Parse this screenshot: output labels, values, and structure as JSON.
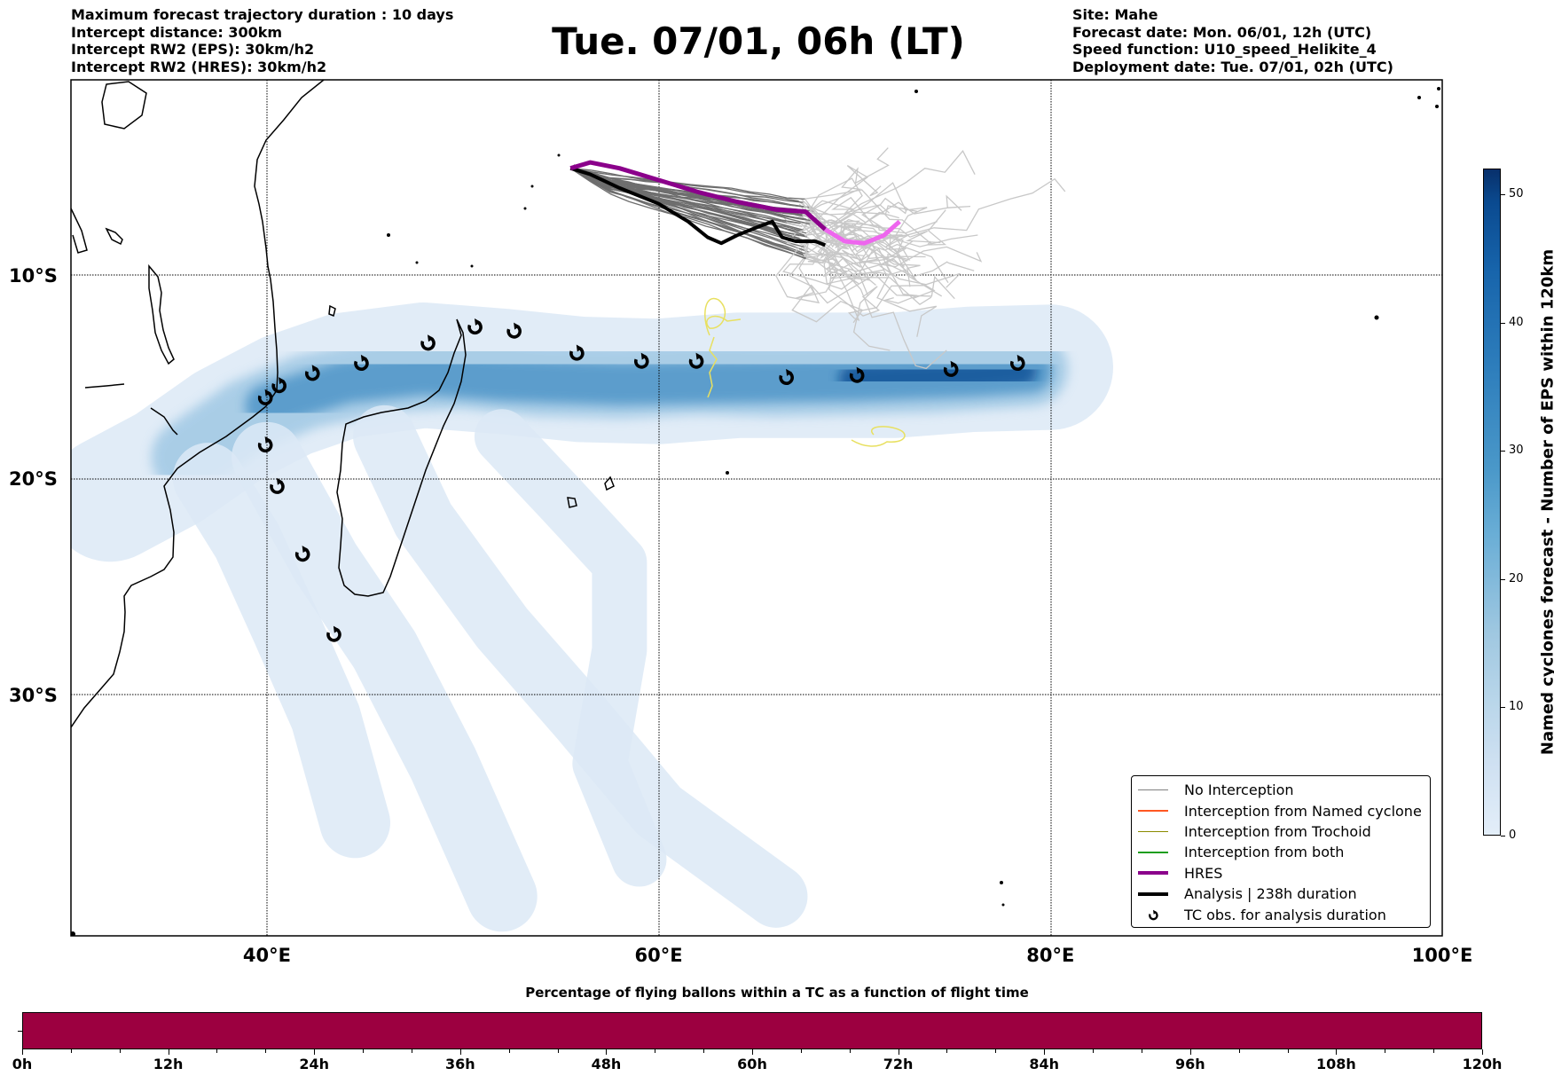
{
  "header_left": {
    "max_duration": "Maximum forecast trajectory duration : 10 days",
    "intercept_distance": "Intercept distance: 300km",
    "intercept_eps": "Intercept RW2 (EPS):  30km/h2",
    "intercept_hres": "Intercept RW2 (HRES): 30km/h2"
  },
  "title": "Tue. 07/01, 06h (LT)",
  "header_right": {
    "site": "Site: Mahe",
    "forecast_date": "Forecast date: Mon. 06/01, 12h (UTC)",
    "speed_function": "Speed function: U10_speed_Helikite_4",
    "deployment_date": "Deployment date: Tue. 07/01, 02h (UTC)"
  },
  "map": {
    "lon_range": [
      30,
      100
    ],
    "lat_range": [
      -41,
      -1
    ],
    "lat_labels": [
      {
        "value": -10,
        "text": "10°S"
      },
      {
        "value": -20,
        "text": "20°S"
      },
      {
        "value": -30,
        "text": "30°S"
      }
    ],
    "lon_labels": [
      {
        "value": 40,
        "text": "40°E"
      },
      {
        "value": 60,
        "text": "60°E"
      },
      {
        "value": 80,
        "text": "80°E"
      },
      {
        "value": 100,
        "text": "100°E"
      }
    ],
    "launch_site": {
      "lon": 55.5,
      "lat": -4.6
    },
    "hres_track": [
      [
        55.5,
        -4.6
      ],
      [
        56.5,
        -4.3
      ],
      [
        58,
        -4.6
      ],
      [
        60,
        -5.2
      ],
      [
        62,
        -5.8
      ],
      [
        64,
        -6.3
      ],
      [
        66,
        -6.7
      ],
      [
        67.5,
        -6.8
      ],
      [
        68.5,
        -7.7
      ],
      [
        69.5,
        -8.3
      ],
      [
        70.5,
        -8.4
      ],
      [
        71.5,
        -8.0
      ],
      [
        72.3,
        -7.3
      ]
    ],
    "hres_split_index": 8,
    "analysis_track": [
      [
        55.5,
        -4.6
      ],
      [
        56.5,
        -4.9
      ],
      [
        58,
        -5.6
      ],
      [
        60,
        -6.4
      ],
      [
        61.5,
        -7.3
      ],
      [
        62.5,
        -8.1
      ],
      [
        63.2,
        -8.4
      ],
      [
        64,
        -8.0
      ],
      [
        65,
        -7.6
      ],
      [
        65.8,
        -7.3
      ],
      [
        66.3,
        -8.1
      ],
      [
        67,
        -8.3
      ],
      [
        68,
        -8.3
      ],
      [
        68.5,
        -8.5
      ]
    ],
    "tc_obs": [
      [
        39.9,
        -16.1
      ],
      [
        40.6,
        -15.5
      ],
      [
        42.3,
        -14.9
      ],
      [
        44.8,
        -14.4
      ],
      [
        48.2,
        -13.4
      ],
      [
        50.6,
        -12.6
      ],
      [
        52.6,
        -12.8
      ],
      [
        55.8,
        -13.9
      ],
      [
        59.1,
        -14.3
      ],
      [
        61.9,
        -14.3
      ],
      [
        66.5,
        -15.1
      ],
      [
        70.1,
        -15.0
      ],
      [
        74.9,
        -14.7
      ],
      [
        78.3,
        -14.4
      ],
      [
        39.9,
        -18.4
      ],
      [
        40.5,
        -20.4
      ],
      [
        41.8,
        -23.6
      ],
      [
        43.4,
        -27.3
      ]
    ],
    "density_field": [
      {
        "track": [
          [
            32,
            -21
          ],
          [
            35,
            -19.5
          ],
          [
            38,
            -17.5
          ],
          [
            41,
            -16
          ],
          [
            44,
            -15
          ],
          [
            48,
            -14.5
          ],
          [
            52,
            -14.8
          ],
          [
            56,
            -15.2
          ],
          [
            60,
            -15.3
          ],
          [
            64,
            -15
          ],
          [
            68,
            -15
          ],
          [
            72,
            -15
          ],
          [
            76,
            -14.7
          ],
          [
            80,
            -14.6
          ]
        ],
        "level": 1,
        "spread": 3.2
      },
      {
        "track": [
          [
            36,
            -19
          ],
          [
            39,
            -17
          ],
          [
            42,
            -15.8
          ],
          [
            46,
            -15
          ],
          [
            50,
            -14.8
          ],
          [
            54,
            -15.2
          ],
          [
            58,
            -15.3
          ],
          [
            62,
            -15.1
          ],
          [
            66,
            -15.2
          ],
          [
            70,
            -15.1
          ],
          [
            74,
            -15
          ],
          [
            79,
            -14.7
          ]
        ],
        "level": 2,
        "spread": 1.9
      },
      {
        "track": [
          [
            40,
            -16.5
          ],
          [
            44,
            -15.3
          ],
          [
            48,
            -14.9
          ],
          [
            52,
            -15.2
          ],
          [
            58,
            -15.4
          ],
          [
            64,
            -15.3
          ],
          [
            70,
            -15.2
          ],
          [
            76,
            -15
          ],
          [
            79,
            -14.8
          ]
        ],
        "level": 3,
        "spread": 1.1
      },
      {
        "track": [
          [
            70,
            -15.2
          ],
          [
            73,
            -15.1
          ],
          [
            76,
            -15
          ],
          [
            78.5,
            -14.8
          ]
        ],
        "level": 4,
        "spread": 0.8
      },
      {
        "track": [
          [
            37,
            -20
          ],
          [
            39,
            -23
          ],
          [
            41,
            -27
          ],
          [
            43,
            -31
          ],
          [
            44.5,
            -35.5
          ]
        ],
        "level": 1,
        "spread": 1.8
      },
      {
        "track": [
          [
            40,
            -19
          ],
          [
            43,
            -24
          ],
          [
            46,
            -28
          ],
          [
            49,
            -33
          ],
          [
            52,
            -38.5
          ]
        ],
        "level": 1,
        "spread": 1.8
      },
      {
        "track": [
          [
            46,
            -18
          ],
          [
            48,
            -22
          ],
          [
            52,
            -27
          ],
          [
            56,
            -31
          ],
          [
            60,
            -35
          ],
          [
            66,
            -38.5
          ]
        ],
        "level": 1,
        "spread": 1.6
      },
      {
        "track": [
          [
            52,
            -18
          ],
          [
            55,
            -21
          ],
          [
            58,
            -24
          ],
          [
            58,
            -28
          ],
          [
            57,
            -33
          ],
          [
            59,
            -37
          ]
        ],
        "level": 1,
        "spread": 1.4
      }
    ]
  },
  "legend": {
    "items": [
      {
        "label": "No Interception",
        "color": "#808080",
        "style": "thin"
      },
      {
        "label": "Interception from Named cyclone",
        "color": "#ff5722",
        "style": "thin"
      },
      {
        "label": "Interception from Trochoid",
        "color": "#8b8b00",
        "style": "thin"
      },
      {
        "label": "Interception from both",
        "color": "#1e9e1e",
        "style": "thin"
      },
      {
        "label": "HRES",
        "color": "#8b008b",
        "style": "thick"
      },
      {
        "label": "Analysis | 238h duration",
        "color": "#000000",
        "style": "thick"
      },
      {
        "label": "TC obs. for analysis duration",
        "color": "#000000",
        "style": "symbol"
      }
    ]
  },
  "colorbar": {
    "title": "Named cyclones forecast - Number of EPS within 120km",
    "range": [
      0,
      52
    ],
    "ticks": [
      0,
      10,
      20,
      30,
      40,
      50
    ]
  },
  "time_bar": {
    "title": "Percentage of flying ballons within a TC as a function of flight time",
    "range_hours": [
      0,
      120
    ],
    "fill_fraction": 1.0,
    "fill_color": "#9c0040",
    "tick_labels": [
      "0h",
      "12h",
      "24h",
      "36h",
      "48h",
      "60h",
      "72h",
      "84h",
      "96h",
      "108h",
      "120h"
    ],
    "minor_tick_step_hours": 4
  },
  "colors": {
    "eps_dark": "#6e6e6e",
    "eps_light": "#c8c8c8",
    "hres": "#8b008b",
    "hres_later": "#ee66ee",
    "yellow_traj": "#e8e060",
    "coast": "#000000"
  }
}
